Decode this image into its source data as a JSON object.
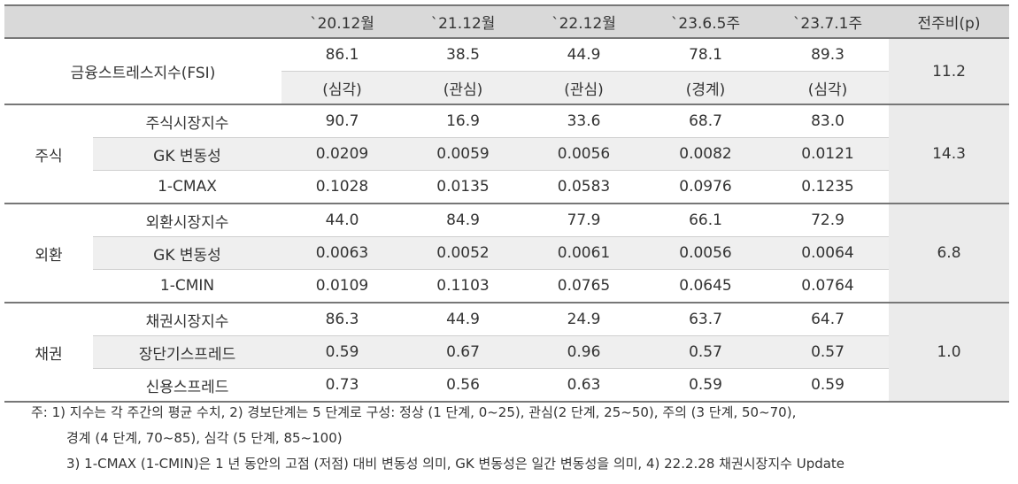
{
  "header": {
    "columns": [
      "`20.12월",
      "`21.12월",
      "`22.12월",
      "`23.6.5주",
      "`23.7.1주",
      "전주비(p)"
    ]
  },
  "fsi": {
    "label": "금융스트레스지수(FSI)",
    "values": [
      "86.1",
      "38.5",
      "44.9",
      "78.1",
      "89.3"
    ],
    "levels": [
      "(심각)",
      "(관심)",
      "(관심)",
      "(경계)",
      "(심각)"
    ],
    "change": "11.2"
  },
  "groups": [
    {
      "name": "주식",
      "change": "14.3",
      "rows": [
        {
          "label": "주식시장지수",
          "values": [
            "90.7",
            "16.9",
            "33.6",
            "68.7",
            "83.0"
          ]
        },
        {
          "label": "GK 변동성",
          "values": [
            "0.0209",
            "0.0059",
            "0.0056",
            "0.0082",
            "0.0121"
          ]
        },
        {
          "label": "1-CMAX",
          "values": [
            "0.1028",
            "0.0135",
            "0.0583",
            "0.0976",
            "0.1235"
          ]
        }
      ]
    },
    {
      "name": "외환",
      "change": "6.8",
      "rows": [
        {
          "label": "외환시장지수",
          "values": [
            "44.0",
            "84.9",
            "77.9",
            "66.1",
            "72.9"
          ]
        },
        {
          "label": "GK 변동성",
          "values": [
            "0.0063",
            "0.0052",
            "0.0061",
            "0.0056",
            "0.0064"
          ]
        },
        {
          "label": "1-CMIN",
          "values": [
            "0.0109",
            "0.1103",
            "0.0765",
            "0.0645",
            "0.0764"
          ]
        }
      ]
    },
    {
      "name": "채권",
      "change": "1.0",
      "rows": [
        {
          "label": "채권시장지수",
          "values": [
            "86.3",
            "44.9",
            "24.9",
            "63.7",
            "64.7"
          ]
        },
        {
          "label": "장단기스프레드",
          "values": [
            "0.59",
            "0.67",
            "0.96",
            "0.57",
            "0.57"
          ]
        },
        {
          "label": "신용스프레드",
          "values": [
            "0.73",
            "0.56",
            "0.63",
            "0.59",
            "0.59"
          ]
        }
      ]
    }
  ],
  "notes": [
    "주: 1) 지수는 각 주간의 평균 수치, 2) 경보단계는 5 단계로 구성: 정상 (1 단계, 0~25), 관심(2 단계, 25~50), 주의 (3 단계, 50~70),",
    "경계 (4 단계, 70~85), 심각 (5 단계, 85~100)",
    "3) 1-CMAX (1-CMIN)은 1 년 동안의 고점 (저점) 대비 변동성 의미, GK 변동성은 일간 변동성을 의미, 4) 22.2.28 채권시장지수 Update"
  ]
}
